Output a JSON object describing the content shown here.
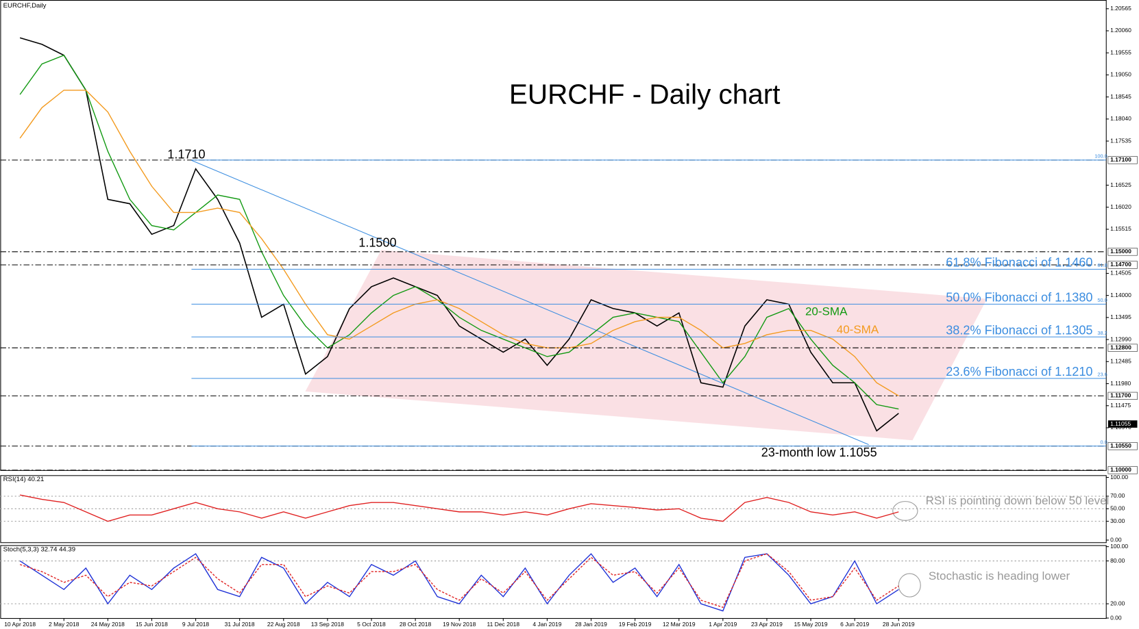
{
  "chart_data": [
    {
      "type": "line",
      "symbol": "EURCHF,Daily",
      "title": "EURCHF - Daily chart",
      "categories": [
        "10 Apr 2018",
        null,
        "2 May 2018",
        null,
        "24 May 2018",
        null,
        "15 Jun 2018",
        null,
        "9 Jul 2018",
        null,
        "31 Jul 2018",
        null,
        "22 Aug 2018",
        null,
        "13 Sep 2018",
        null,
        "5 Oct 2018",
        null,
        "28 Oct 2018",
        null,
        "19 Nov 2018",
        null,
        "11 Dec 2018",
        null,
        "4 Jan 2019",
        null,
        "28 Jan 2019",
        null,
        "19 Feb 2019",
        null,
        "12 Mar 2019",
        null,
        "1 Apr 2019",
        null,
        "23 Apr 2019",
        null,
        "15 May 2019",
        null,
        "6 Jun 2019",
        null,
        "28 Jun 2019"
      ],
      "series": [
        {
          "color": "#000000",
          "values": [
            1.199,
            1.1975,
            1.195,
            1.187,
            1.162,
            1.161,
            1.154,
            1.156,
            1.169,
            1.162,
            1.152,
            1.135,
            1.138,
            1.122,
            1.126,
            1.137,
            1.142,
            1.144,
            1.142,
            1.14,
            1.133,
            1.13,
            1.127,
            1.13,
            1.124,
            1.13,
            1.139,
            1.137,
            1.136,
            1.133,
            1.136,
            1.12,
            1.119,
            1.133,
            1.139,
            1.138,
            1.127,
            1.12,
            1.12,
            1.109,
            1.113
          ]
        },
        {
          "name": "20-SMA",
          "color": "#119911",
          "values": [
            1.186,
            1.193,
            1.195,
            1.187,
            1.173,
            1.162,
            1.156,
            1.155,
            1.159,
            1.163,
            1.162,
            1.15,
            1.14,
            1.133,
            1.128,
            1.131,
            1.136,
            1.14,
            1.142,
            1.139,
            1.135,
            1.132,
            1.13,
            1.128,
            1.126,
            1.127,
            1.131,
            1.135,
            1.136,
            1.135,
            1.134,
            1.127,
            1.12,
            1.126,
            1.135,
            1.137,
            1.13,
            1.124,
            1.12,
            1.115,
            1.114
          ]
        },
        {
          "name": "40-SMA",
          "color": "#f39a1e",
          "values": [
            1.176,
            1.183,
            1.187,
            1.187,
            1.182,
            1.173,
            1.165,
            1.159,
            1.159,
            1.16,
            1.159,
            1.153,
            1.146,
            1.138,
            1.131,
            1.13,
            1.133,
            1.136,
            1.138,
            1.139,
            1.137,
            1.134,
            1.131,
            1.129,
            1.128,
            1.128,
            1.129,
            1.132,
            1.134,
            1.135,
            1.135,
            1.132,
            1.128,
            1.129,
            1.131,
            1.132,
            1.132,
            1.13,
            1.126,
            1.12,
            1.117
          ]
        }
      ],
      "ylim": [
        1.1,
        1.20565
      ],
      "yticks": [
        1.20565,
        {
          "value": 1.2006,
          "label": "1.20060"
        },
        1.19555,
        {
          "value": 1.1905,
          "label": "1.19050"
        },
        1.18545,
        {
          "value": 1.1804,
          "label": "1.18040"
        },
        1.17535,
        1.16525,
        {
          "value": 1.1602,
          "label": "1.16020"
        },
        1.15515,
        1.14505,
        {
          "value": 1.14,
          "label": "1.14000"
        },
        1.13495,
        {
          "value": 1.1299,
          "label": "1.12990"
        },
        1.12485,
        {
          "value": 1.1198,
          "label": "1.11980"
        },
        1.11475,
        {
          "value": 1.1097,
          "label": "1.10970"
        }
      ],
      "levels": [
        {
          "value": 1.171,
          "label": "1.17100"
        },
        {
          "value": 1.15,
          "label": "1.15000"
        },
        {
          "value": 1.147,
          "label": "1.14700"
        },
        {
          "value": 1.128,
          "label": "1.12800"
        },
        {
          "value": 1.117,
          "label": "1.11700"
        },
        {
          "value": 1.1055,
          "label": "1.10550"
        },
        {
          "value": 1.1,
          "label": "1.10000"
        }
      ],
      "last_price": 1.11055,
      "fibonacci": [
        {
          "ratio": "100.0",
          "value": 1.171
        },
        {
          "ratio": "61.8",
          "value": 1.146,
          "label": "61.8% Fibonacci of 1.1460"
        },
        {
          "ratio": "50.0",
          "value": 1.138,
          "label": "50.0% Fibonacci of 1.1380"
        },
        {
          "ratio": "38.2",
          "value": 1.1305,
          "label": "38.2% Fibonacci of 1.1305"
        },
        {
          "ratio": "23.6",
          "value": 1.121,
          "label": "23.6% Fibonacci of 1.1210"
        },
        {
          "ratio": "0.0",
          "value": 1.1055
        }
      ],
      "annotations": [
        "1.1710",
        "1.1500",
        "23-month low 1.1055"
      ]
    },
    {
      "type": "line",
      "title": "RSI(14) 40.21",
      "note": "RSI is pointing down below 50 level",
      "series": [
        {
          "color": "#e02020",
          "values": [
            72,
            65,
            60,
            45,
            30,
            40,
            40,
            50,
            60,
            50,
            45,
            35,
            45,
            35,
            45,
            55,
            60,
            60,
            55,
            50,
            45,
            45,
            40,
            45,
            40,
            50,
            58,
            55,
            52,
            48,
            50,
            35,
            30,
            60,
            68,
            60,
            45,
            40,
            45,
            35,
            45
          ]
        }
      ],
      "ylim": [
        0,
        100
      ],
      "yticks": [
        {
          "value": 0,
          "label": "0.00"
        },
        {
          "value": 30,
          "label": "30.00"
        },
        {
          "value": 50,
          "label": "50.00"
        },
        {
          "value": 70,
          "label": "70.00"
        },
        {
          "value": 100,
          "label": "100.00"
        }
      ]
    },
    {
      "type": "line",
      "title": "Stoch(5,3,3) 32.74 44.39",
      "note": "Stochastic is heading lower",
      "series": [
        {
          "color": "#1c2fd6",
          "values": [
            80,
            60,
            40,
            70,
            20,
            60,
            40,
            70,
            90,
            40,
            30,
            85,
            70,
            20,
            50,
            30,
            75,
            60,
            80,
            30,
            20,
            60,
            30,
            70,
            20,
            60,
            90,
            50,
            70,
            30,
            75,
            20,
            10,
            85,
            90,
            60,
            20,
            30,
            80,
            20,
            40
          ]
        },
        {
          "color": "#e02020",
          "style": "dashed",
          "values": [
            75,
            65,
            50,
            60,
            30,
            50,
            45,
            65,
            85,
            55,
            35,
            75,
            75,
            30,
            45,
            35,
            65,
            65,
            75,
            40,
            25,
            55,
            35,
            65,
            25,
            55,
            85,
            60,
            65,
            35,
            70,
            25,
            15,
            80,
            90,
            65,
            25,
            30,
            70,
            25,
            45
          ]
        }
      ],
      "ylim": [
        0,
        100
      ],
      "yticks": [
        {
          "value": 0,
          "label": "0.00"
        },
        {
          "value": 20,
          "label": "20.00"
        },
        {
          "value": 80,
          "label": "80.00"
        },
        {
          "value": 100,
          "label": "100.00"
        }
      ]
    }
  ]
}
